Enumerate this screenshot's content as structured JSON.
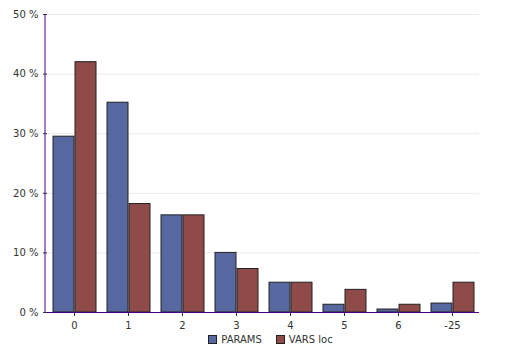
{
  "chart_data": {
    "type": "bar",
    "categories": [
      "0",
      "1",
      "2",
      "3",
      "4",
      "5",
      "6",
      "-25"
    ],
    "series": [
      {
        "name": "PARAMS",
        "color": "#5767a0",
        "values": [
          29.5,
          35.2,
          16.3,
          10,
          5,
          1.3,
          0.5,
          1.5
        ]
      },
      {
        "name": "VARS loc",
        "color": "#8f4a4a",
        "values": [
          42,
          18.2,
          16.3,
          7.3,
          5,
          3.8,
          1.3,
          5
        ]
      }
    ],
    "ylim": [
      0,
      50
    ],
    "yticks": [
      {
        "value": 0,
        "label": "0 %"
      },
      {
        "value": 10,
        "label": "10 %"
      },
      {
        "value": 20,
        "label": "20 %"
      },
      {
        "value": 30,
        "label": "30 %"
      },
      {
        "value": 40,
        "label": "40 %"
      },
      {
        "value": 50,
        "label": "50 %"
      }
    ],
    "grid": true,
    "legend": "bottom"
  }
}
